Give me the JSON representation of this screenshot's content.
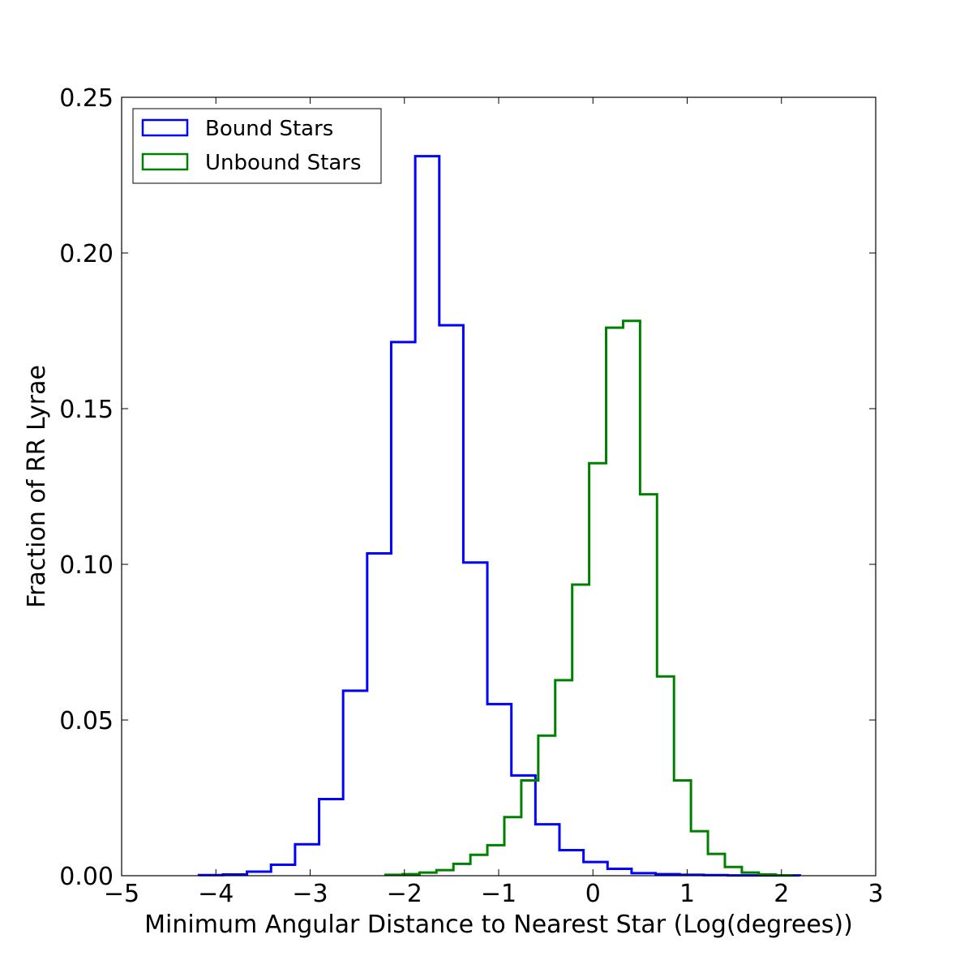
{
  "chart_data": {
    "type": "histogram-step",
    "title": "",
    "xlabel": "Minimum Angular Distance to Nearest Star (Log(degrees))",
    "ylabel": "Fraction of RR Lyrae",
    "xlim": [
      -5,
      3
    ],
    "ylim": [
      0,
      0.25
    ],
    "xticks": [
      -5,
      -4,
      -3,
      -2,
      -1,
      0,
      1,
      2,
      3
    ],
    "xtick_labels": [
      "−5",
      "−4",
      "−3",
      "−2",
      "−1",
      "0",
      "1",
      "2",
      "3"
    ],
    "yticks": [
      0,
      0.05,
      0.1,
      0.15,
      0.2,
      0.25
    ],
    "ytick_labels": [
      "0.00",
      "0.05",
      "0.10",
      "0.15",
      "0.20",
      "0.25"
    ],
    "grid": false,
    "legend": "top-left",
    "series": [
      {
        "name": "Bound Stars",
        "color": "#0000ff",
        "bin_edges": [
          -4.18,
          -3.925,
          -3.67,
          -3.415,
          -3.16,
          -2.905,
          -2.65,
          -2.395,
          -2.14,
          -1.885,
          -1.63,
          -1.375,
          -1.12,
          -0.865,
          -0.61,
          -0.355,
          -0.1,
          0.155,
          0.41,
          0.665,
          0.92,
          1.175,
          1.43,
          1.685,
          1.94,
          2.195
        ],
        "values": [
          0.0002,
          0.0004,
          0.0013,
          0.0035,
          0.0101,
          0.0246,
          0.0594,
          0.1035,
          0.1714,
          0.2311,
          0.1768,
          0.1006,
          0.0551,
          0.0322,
          0.0165,
          0.0082,
          0.0044,
          0.0022,
          0.0008,
          0.0005,
          0.0003,
          0.0002,
          0.0001,
          0.0001,
          0.0001
        ]
      },
      {
        "name": "Unbound Stars",
        "color": "#008000",
        "bin_edges": [
          -2.2,
          -2.02,
          -1.84,
          -1.66,
          -1.48,
          -1.3,
          -1.12,
          -0.94,
          -0.76,
          -0.58,
          -0.4,
          -0.22,
          -0.04,
          0.14,
          0.32,
          0.5,
          0.68,
          0.86,
          1.04,
          1.22,
          1.4,
          1.58,
          1.76,
          1.94,
          2.12
        ],
        "values": [
          0.0003,
          0.0005,
          0.001,
          0.0018,
          0.0038,
          0.0067,
          0.0098,
          0.0188,
          0.0306,
          0.045,
          0.0628,
          0.0935,
          0.1325,
          0.176,
          0.1782,
          0.1225,
          0.064,
          0.0306,
          0.0143,
          0.007,
          0.0028,
          0.001,
          0.0004,
          0.0001
        ]
      }
    ]
  }
}
